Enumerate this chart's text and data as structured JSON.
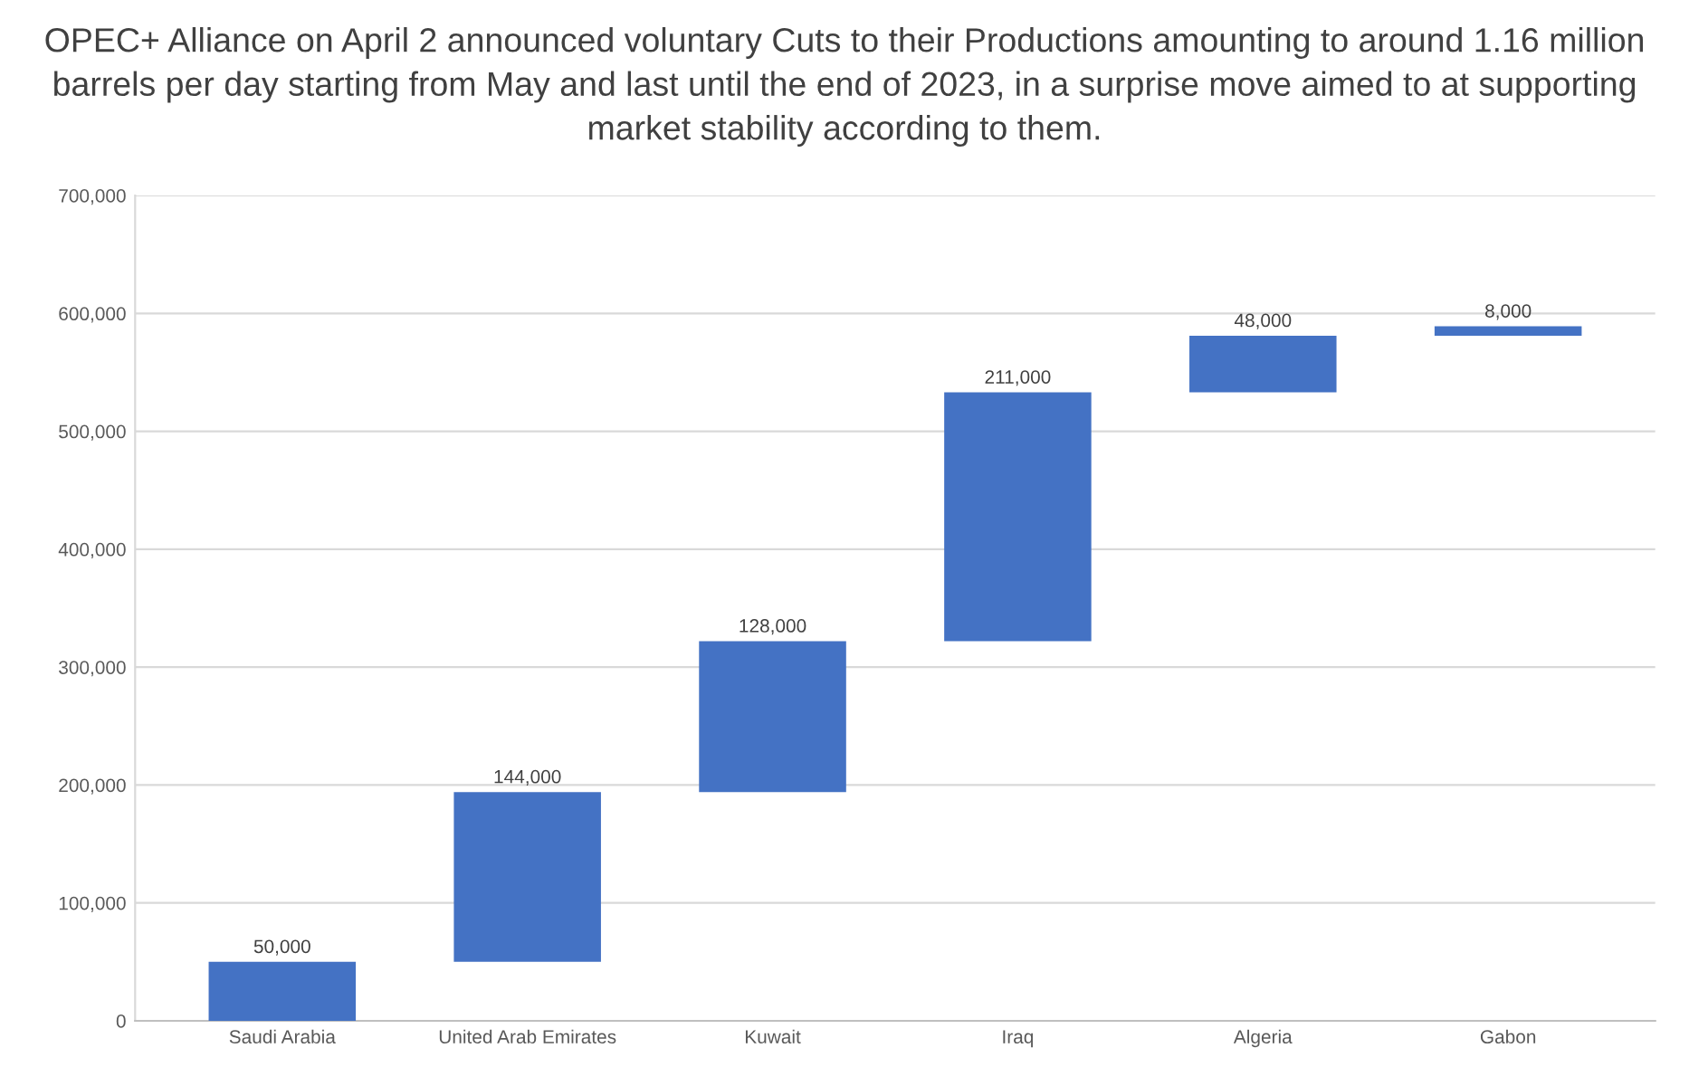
{
  "chart_data": {
    "type": "bar",
    "title": "OPEC+ Alliance on April 2 announced voluntary Cuts to their Productions amounting to around 1.16 million barrels per day starting from May and last until the end of 2023, in a surprise move aimed to at supporting market stability according to them.",
    "categories": [
      "Saudi Arabia",
      "United Arab Emirates",
      "Kuwait",
      "Iraq",
      "Algeria",
      "Gabon"
    ],
    "values": [
      50000,
      144000,
      128000,
      211000,
      48000,
      8000
    ],
    "base": [
      0,
      50000,
      194000,
      322000,
      533000,
      581000
    ],
    "color": "#4472c4",
    "value_labels": [
      "50,000",
      "144,000",
      "128,000",
      "211,000",
      "48,000",
      "8,000"
    ],
    "ylim": [
      0,
      700000
    ],
    "yticks": [
      0,
      {
        "value": 100000,
        "label": "100,000"
      },
      {
        "value": 200000,
        "label": "200,000"
      },
      {
        "value": 300000,
        "label": "300,000"
      },
      {
        "value": 400000,
        "label": "400,000"
      },
      {
        "value": 500000,
        "label": "500,000"
      },
      {
        "value": 600000,
        "label": "600,000"
      },
      {
        "value": 700000,
        "label": "700,000"
      }
    ],
    "grid": "y"
  }
}
